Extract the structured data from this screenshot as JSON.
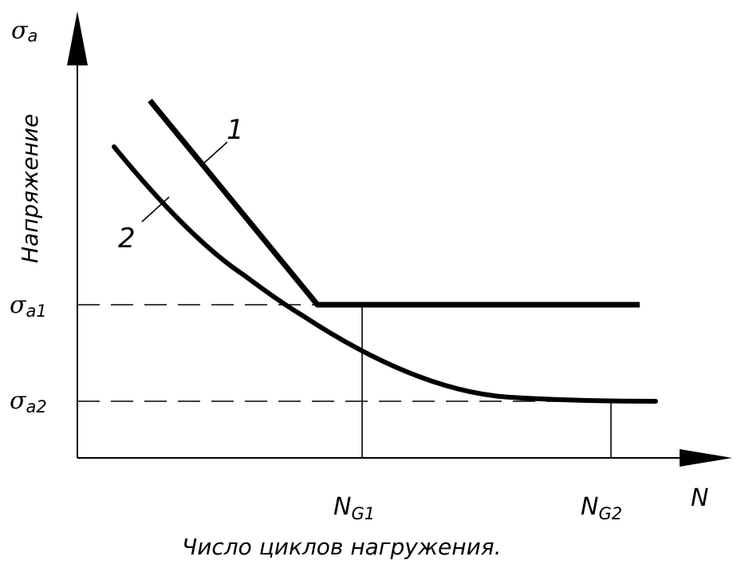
{
  "diagram": {
    "y_axis": {
      "symbol": "σ",
      "subscript": "a",
      "title": "Напряжение"
    },
    "x_axis": {
      "symbol": "N",
      "title": "Число циклов нагружения."
    },
    "levels": [
      {
        "symbol": "σ",
        "subscript": "a1"
      },
      {
        "symbol": "σ",
        "subscript": "a2"
      }
    ],
    "cycle_marks": [
      {
        "symbol": "N",
        "subscript": "G1"
      },
      {
        "symbol": "N",
        "subscript": "G2"
      }
    ],
    "curves": [
      {
        "label": "1"
      },
      {
        "label": "2"
      }
    ],
    "colors": {
      "line": "#000000",
      "background": "#ffffff"
    }
  }
}
